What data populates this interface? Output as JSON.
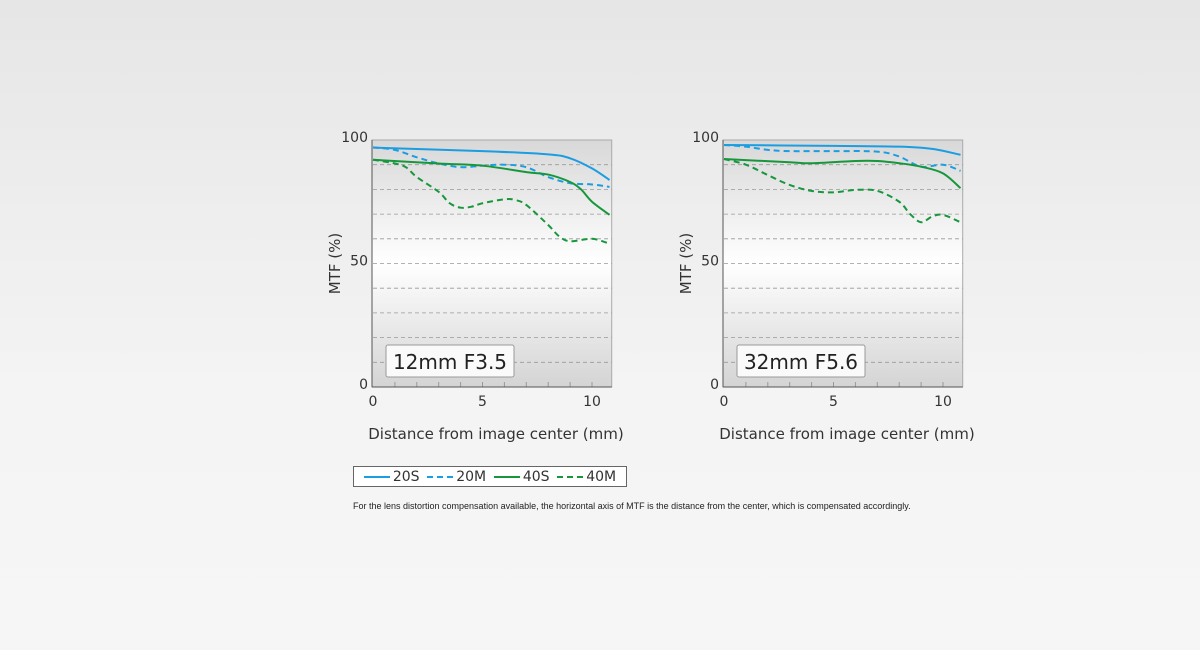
{
  "chart_data": [
    {
      "type": "line",
      "label": "12mm F3.5",
      "xlabel": "Distance from image center (mm)",
      "ylabel": "MTF (%)",
      "xlim": [
        0,
        10.9
      ],
      "ylim": [
        0,
        100
      ],
      "xticks": [
        "0",
        "5",
        "10"
      ],
      "yticks": [
        "0",
        "50",
        "100"
      ],
      "grid": "dashed horizontal every 10",
      "series": [
        {
          "name": "20S",
          "style": "solid",
          "color": "#1b9de2",
          "x": [
            0,
            5,
            8,
            9,
            10,
            10.8
          ],
          "y": [
            96.9,
            95.5,
            94.2,
            92.6,
            88.5,
            83.8
          ]
        },
        {
          "name": "20M",
          "style": "dashed",
          "color": "#1b9de2",
          "x": [
            0,
            1,
            2,
            3,
            4,
            5,
            6,
            7,
            8,
            9,
            10,
            10.8
          ],
          "y": [
            97,
            96,
            93,
            90.5,
            89,
            89.6,
            90,
            89,
            85,
            82.5,
            82,
            81
          ]
        },
        {
          "name": "40S",
          "style": "solid",
          "color": "#17973c",
          "x": [
            0,
            3,
            5,
            7,
            8,
            9,
            9.5,
            10,
            10.8
          ],
          "y": [
            92,
            90.5,
            89.6,
            87,
            86,
            83,
            80,
            75,
            69.7
          ]
        },
        {
          "name": "40M",
          "style": "dashed",
          "color": "#17973c",
          "x": [
            0,
            1,
            1.5,
            2,
            3,
            3.5,
            4,
            4.5,
            5,
            6,
            6.5,
            7,
            8,
            8.5,
            9,
            10,
            10.8
          ],
          "y": [
            92,
            90.5,
            89,
            85,
            79,
            74.4,
            72.6,
            73,
            74.4,
            76,
            75.7,
            73.7,
            65.6,
            61,
            59,
            60,
            58
          ]
        }
      ]
    },
    {
      "type": "line",
      "label": "32mm F5.6",
      "xlabel": "Distance from image center (mm)",
      "ylabel": "MTF (%)",
      "xlim": [
        0,
        10.9
      ],
      "ylim": [
        0,
        100
      ],
      "xticks": [
        "0",
        "5",
        "10"
      ],
      "yticks": [
        "0",
        "50",
        "100"
      ],
      "grid": "dashed horizontal every 10",
      "series": [
        {
          "name": "20S",
          "style": "solid",
          "color": "#1b9de2",
          "x": [
            0,
            5,
            8,
            9.5,
            10.8
          ],
          "y": [
            98,
            97.6,
            97.3,
            96.4,
            94
          ]
        },
        {
          "name": "20M",
          "style": "dashed",
          "color": "#1b9de2",
          "x": [
            0,
            1,
            2,
            3,
            5,
            7,
            8,
            9,
            10,
            10.8
          ],
          "y": [
            98,
            97.3,
            96,
            95.5,
            95.5,
            95.3,
            93.3,
            89.2,
            90,
            87.5
          ]
        },
        {
          "name": "40S",
          "style": "solid",
          "color": "#17973c",
          "x": [
            0,
            3,
            4,
            6,
            7,
            8,
            9,
            10,
            10.8
          ],
          "y": [
            92.3,
            91,
            90.6,
            91.5,
            91.5,
            90.6,
            89.2,
            86.5,
            80.5
          ]
        },
        {
          "name": "40M",
          "style": "dashed",
          "color": "#17973c",
          "x": [
            0,
            1,
            2,
            3,
            4,
            5,
            6,
            7,
            8,
            8.5,
            9,
            9.5,
            10,
            10.8
          ],
          "y": [
            92.3,
            90,
            85.8,
            81.8,
            79.4,
            78.8,
            79.8,
            79.4,
            75,
            70,
            66.7,
            69,
            69.7,
            66.7
          ]
        }
      ]
    }
  ],
  "legend": [
    "20S",
    "20M",
    "40S",
    "40M"
  ],
  "note": "For the lens distortion compensation available, the horizontal axis of MTF is the distance from the center, which is compensated accordingly."
}
